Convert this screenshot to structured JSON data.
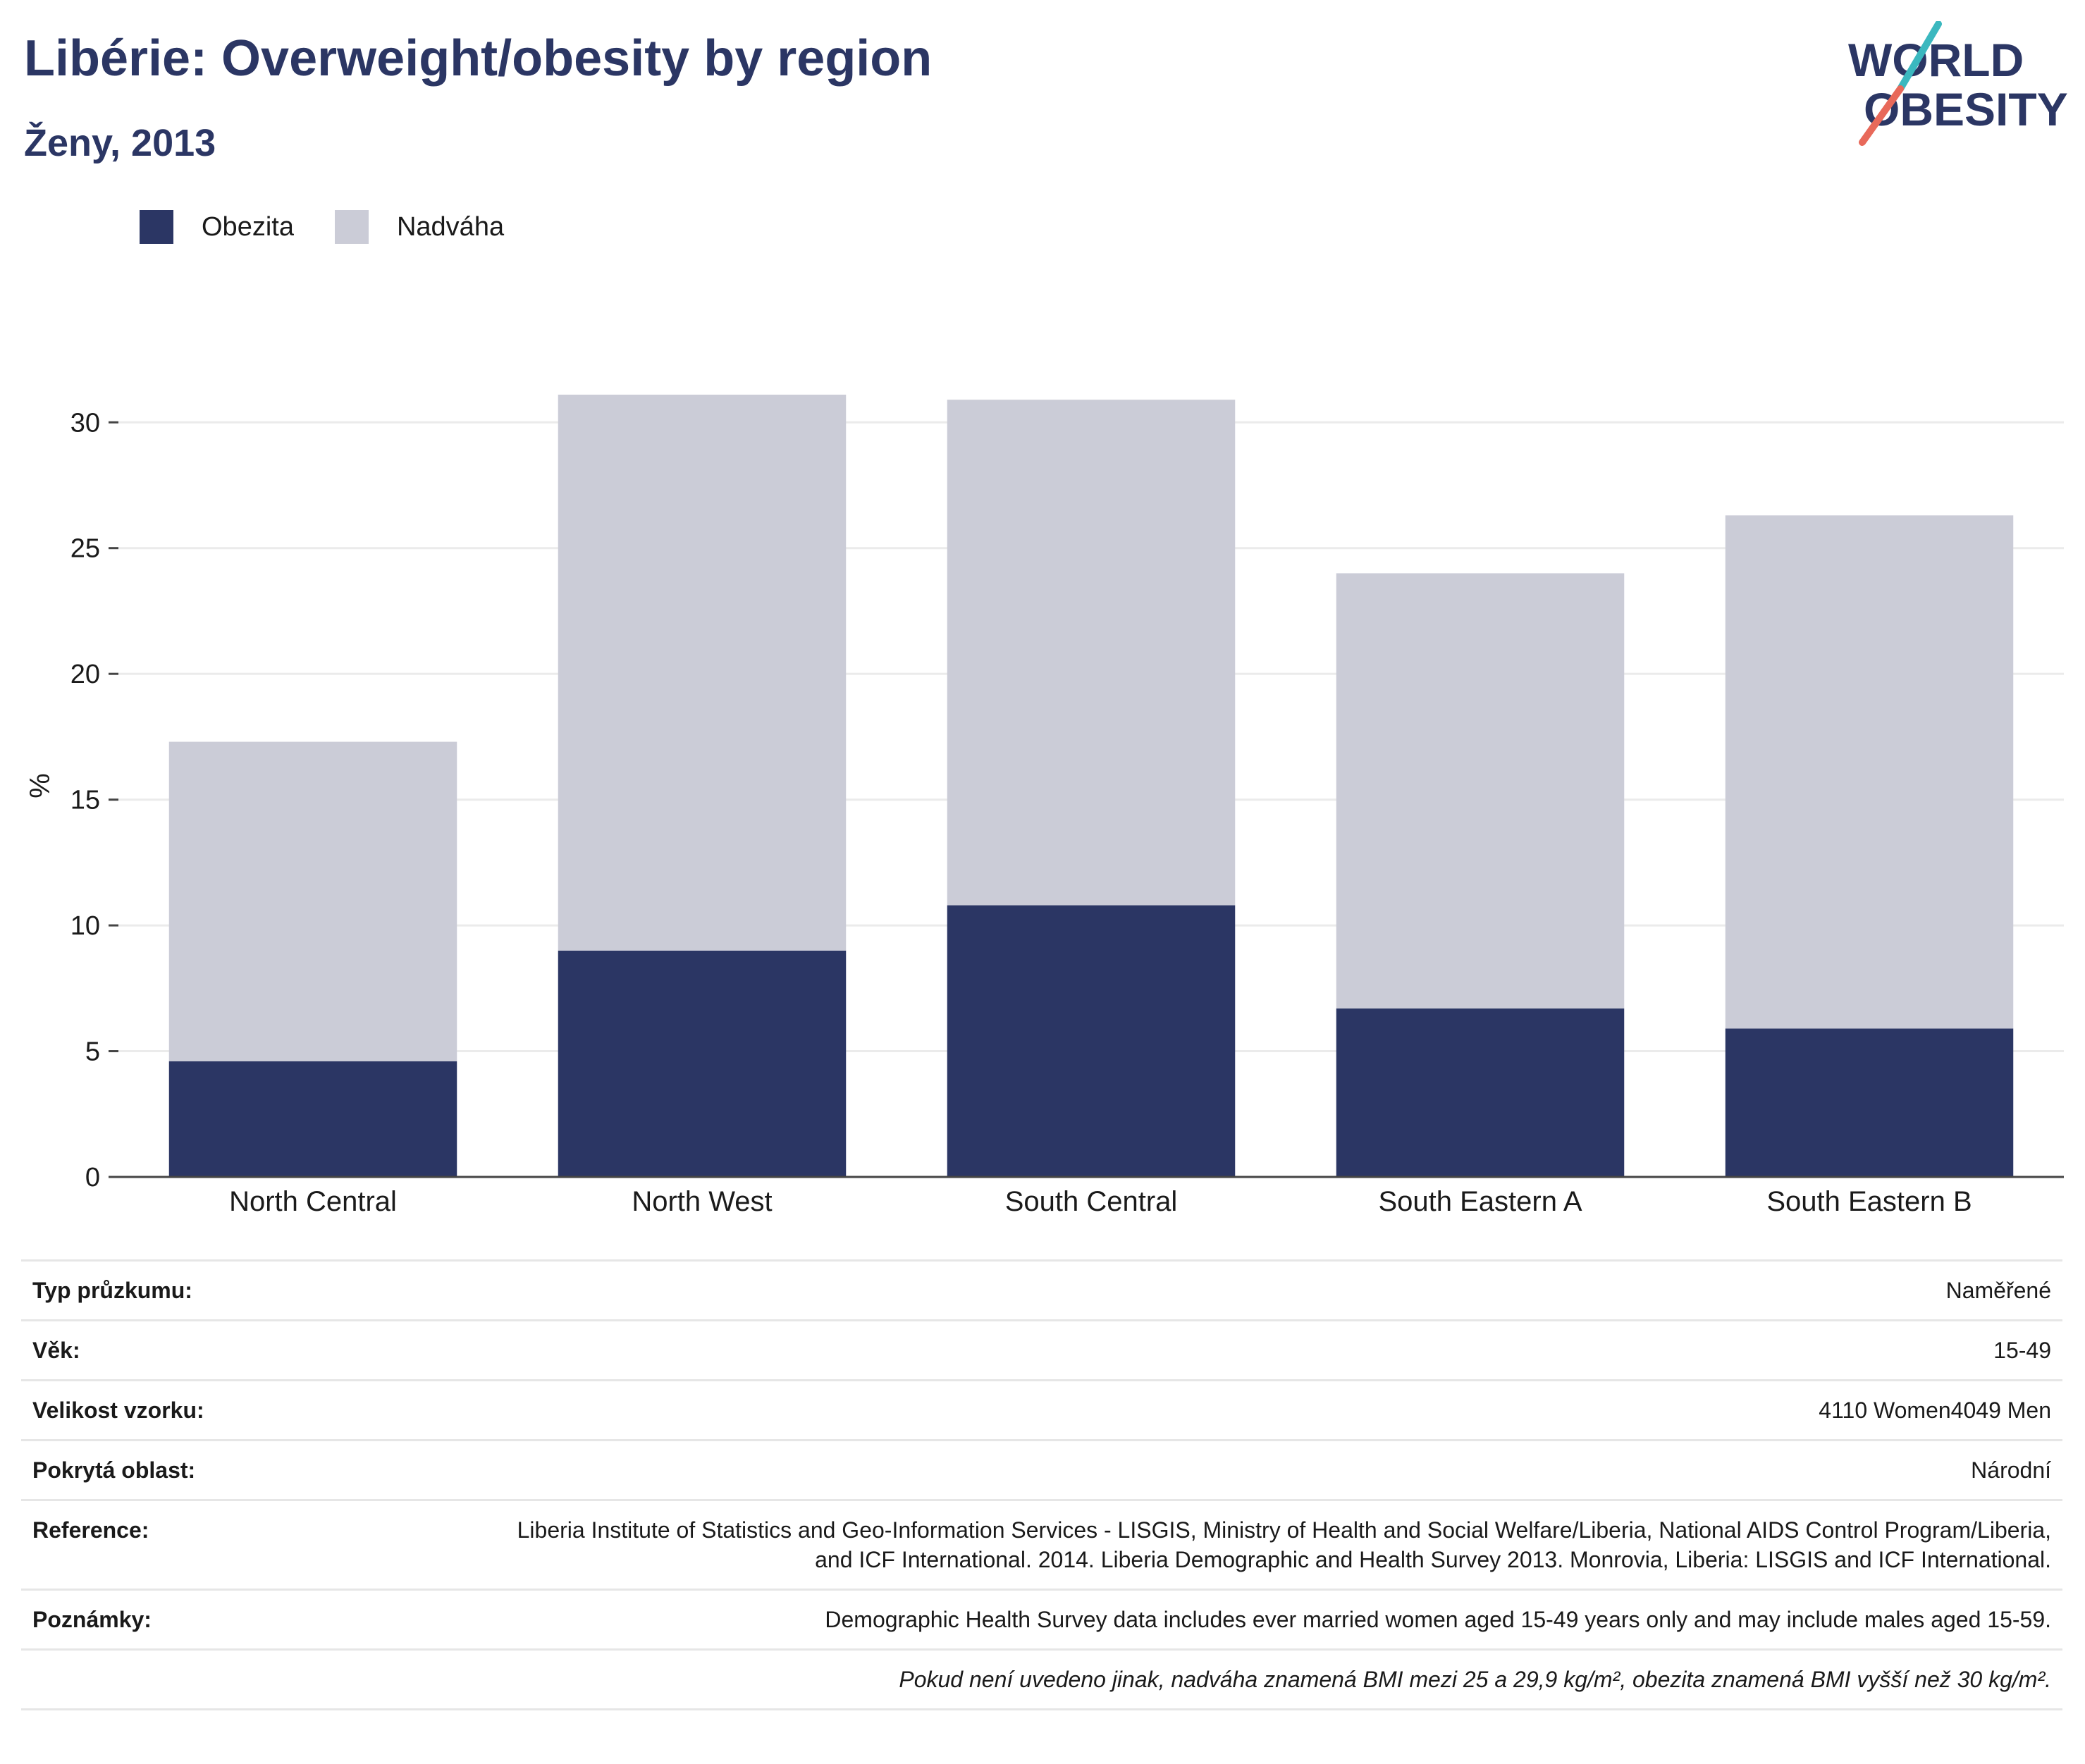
{
  "header": {
    "title": "Libérie: Overweight/obesity by region",
    "subtitle": "Ženy, 2013"
  },
  "logo": {
    "line1": "WORLD",
    "line2": "OBESITY",
    "colors": {
      "text": "#2b3664",
      "slash_top": "#3bb8bf",
      "slash_bottom": "#e8695a"
    }
  },
  "colors": {
    "obesity": "#2b3664",
    "overweight": "#cbccd7",
    "grid": "#ebebeb",
    "axis": "#444444"
  },
  "chart_data": {
    "type": "bar",
    "stacked": true,
    "categories": [
      "North Central",
      "North West",
      "South Central",
      "South Eastern A",
      "South Eastern B"
    ],
    "series": [
      {
        "name": "Obezita",
        "values": [
          4.6,
          9.0,
          10.8,
          6.7,
          5.9
        ]
      },
      {
        "name": "Nadváha",
        "values": [
          12.7,
          22.1,
          20.1,
          17.3,
          20.4
        ]
      }
    ],
    "totals": [
      17.3,
      31.1,
      30.9,
      24.0,
      26.3
    ],
    "ylabel": "%",
    "ylim": [
      0,
      31.1
    ],
    "yticks": [
      0,
      5,
      10,
      15,
      20,
      25,
      30
    ],
    "grid": true,
    "legend_position": "top-left"
  },
  "info": [
    {
      "key": "Typ průzkumu:",
      "value": "Naměřené"
    },
    {
      "key": "Věk:",
      "value": "15-49"
    },
    {
      "key": "Velikost vzorku:",
      "value": "4110 Women4049 Men"
    },
    {
      "key": "Pokrytá oblast:",
      "value": "Národní"
    },
    {
      "key": "Reference:",
      "value": "Liberia Institute of Statistics and Geo-Information Services - LISGIS, Ministry of Health and Social Welfare/Liberia, National AIDS Control Program/Liberia, and ICF International. 2014. Liberia Demographic and Health Survey 2013. Monrovia, Liberia: LISGIS and ICF International."
    },
    {
      "key": "Poznámky:",
      "value": "Demographic Health Survey data includes ever married women aged 15-49 years only and may include males aged 15-59."
    }
  ],
  "footnote": "Pokud není uvedeno jinak, nadváha znamená BMI mezi 25 a 29,9 kg/m², obezita znamená BMI vyšší než 30 kg/m²."
}
